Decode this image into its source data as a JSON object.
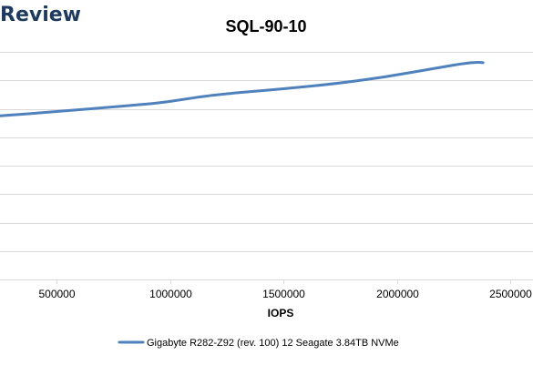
{
  "watermark": "Review",
  "chart_data": {
    "type": "line",
    "title": "SQL-90-10",
    "xlabel": "IOPS",
    "ylabel": "",
    "x_ticks": [
      500000,
      1000000,
      1500000,
      2000000,
      2500000
    ],
    "xlim": [
      250000,
      2600000
    ],
    "ylim": [
      0,
      8
    ],
    "y_gridlines": 8,
    "grid": true,
    "legend_position": "bottom",
    "series": [
      {
        "name": "Gigabyte R282-Z92 (rev. 100) 12 Seagate 3.84TB NVMe",
        "color": "#4f81bd",
        "x": [
          250000,
          500000,
          800000,
          950000,
          1050000,
          1200000,
          1500000,
          1750000,
          1950000,
          2150000,
          2300000,
          2360000,
          2380000
        ],
        "y": [
          5.75,
          5.9,
          6.1,
          6.2,
          6.32,
          6.5,
          6.7,
          6.9,
          7.12,
          7.4,
          7.6,
          7.64,
          7.62
        ]
      }
    ]
  }
}
